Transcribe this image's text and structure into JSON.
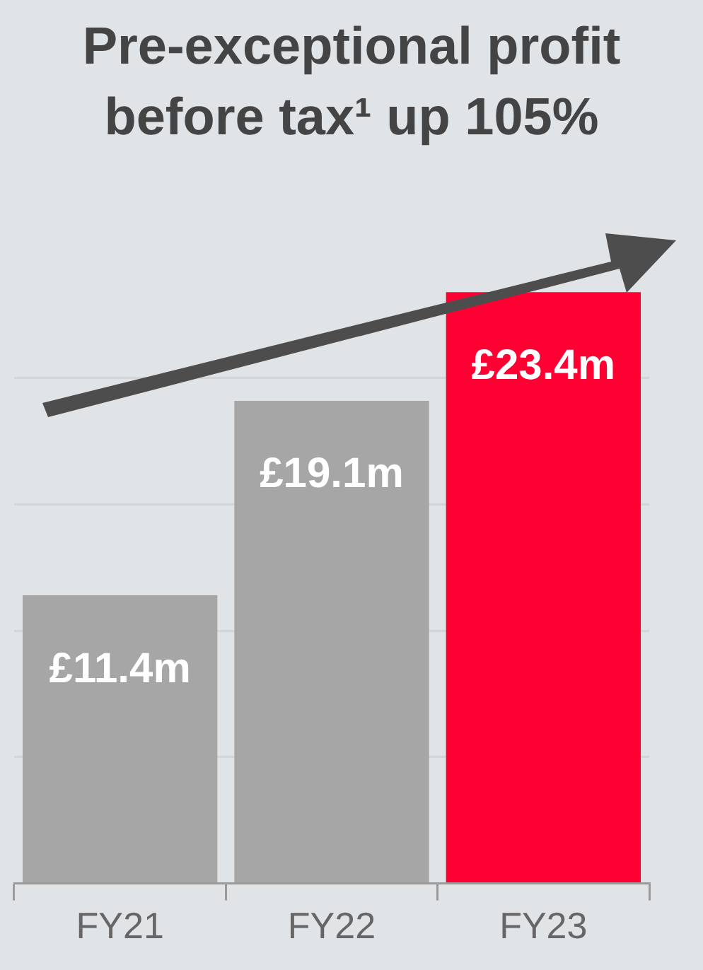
{
  "chart_data": {
    "type": "bar",
    "title": "Pre-exceptional profit before tax¹ up 105%",
    "categories": [
      "FY21",
      "FY22",
      "FY23"
    ],
    "values": [
      11.4,
      19.1,
      23.4
    ],
    "colors": [
      "#a6a6a6",
      "#a6a6a6",
      "#ff0033"
    ],
    "value_labels": [
      "£11.4m",
      "£19.1m",
      "£23.4m"
    ],
    "yticks": [
      {
        "value": 0,
        "label": null
      },
      {
        "value": 5,
        "label": null
      },
      {
        "value": 10,
        "label": null
      },
      {
        "value": 15,
        "label": null
      },
      {
        "value": 20,
        "label": null
      }
    ],
    "grid": "y",
    "tick_labels": "x",
    "legend": false
  }
}
